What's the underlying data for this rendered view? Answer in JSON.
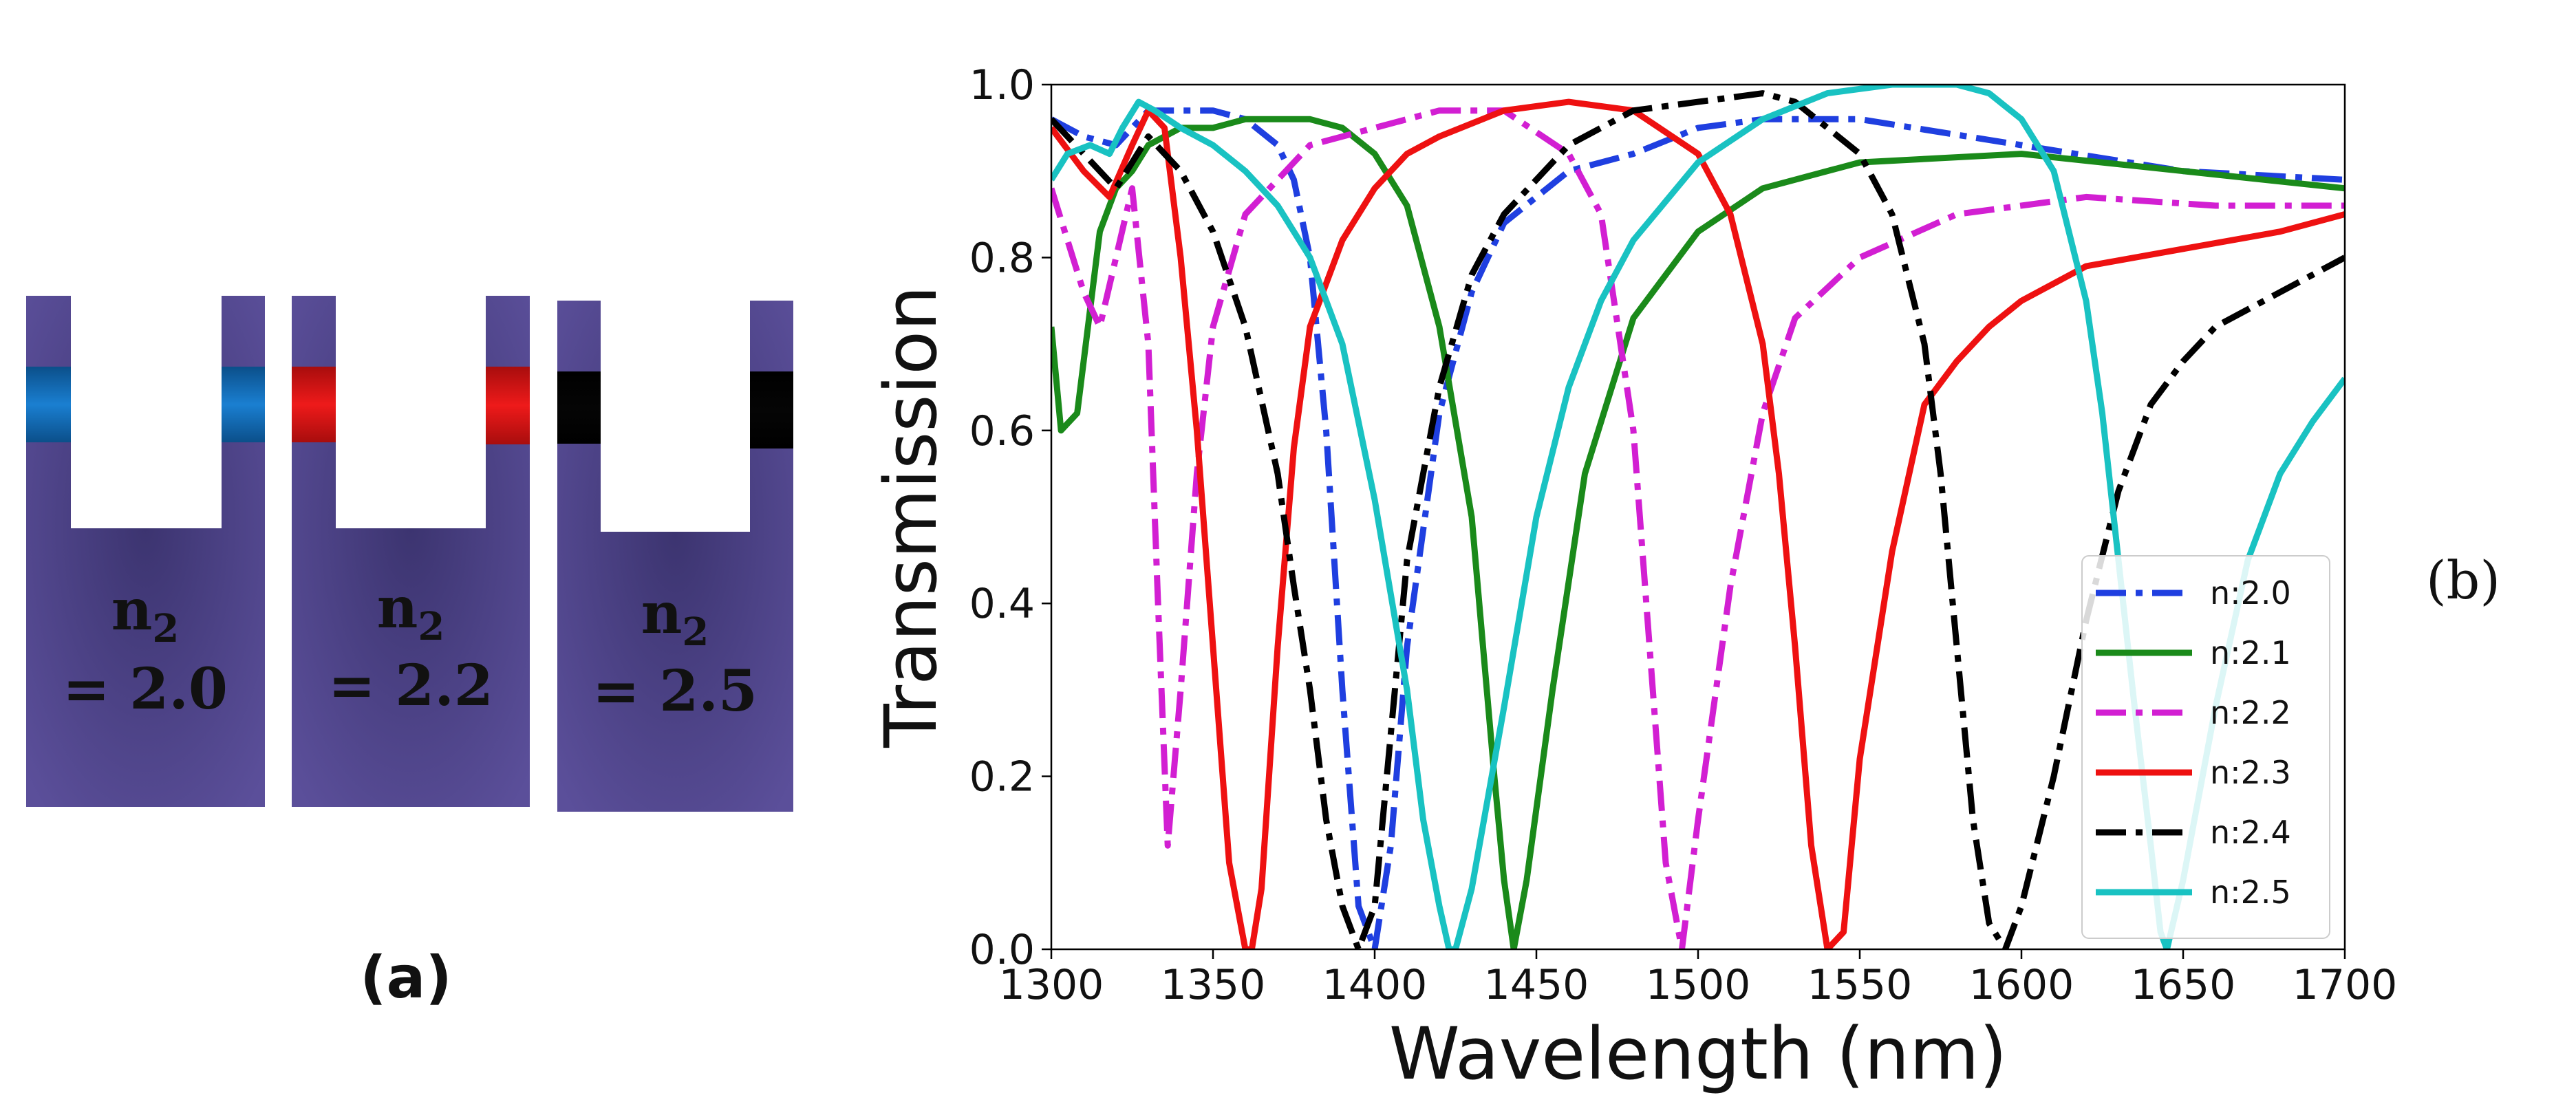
{
  "panel_a": {
    "label": "(a)",
    "devices": [
      {
        "n_symbol": "n",
        "n_subscript": "2",
        "equation": "= 2.0",
        "insert_color": "#1a7fd1",
        "insert_color_dark": "#0b4f8a"
      },
      {
        "n_symbol": "n",
        "n_subscript": "2",
        "equation": "= 2.2",
        "insert_color": "#ee1a1a",
        "insert_color_dark": "#a80d0d"
      },
      {
        "n_symbol": "n",
        "n_subscript": "2",
        "equation": "= 2.5",
        "insert_color": "#050505",
        "insert_color_dark": "#000000"
      }
    ],
    "body_color": "#5b4f9a",
    "body_color_dark": "#3c3470"
  },
  "panel_b": {
    "label": "(b)"
  },
  "chart_data": {
    "type": "line",
    "title": "",
    "xlabel": "Wavelength (nm)",
    "ylabel": "Transmission",
    "xlim": [
      1300,
      1700
    ],
    "ylim": [
      0.0,
      1.0
    ],
    "xticks": [
      1300,
      1350,
      1400,
      1450,
      1500,
      1550,
      1600,
      1650,
      1700
    ],
    "yticks": [
      0.0,
      0.2,
      0.4,
      0.6,
      0.8,
      1.0
    ],
    "xtick_labels": [
      "1300",
      "1350",
      "1400",
      "1450",
      "1500",
      "1550",
      "1600",
      "1650",
      "1700"
    ],
    "ytick_labels": [
      "0.0",
      "0.2",
      "0.4",
      "0.6",
      "0.8",
      "1.0"
    ],
    "legend_position": "lower-right",
    "series": [
      {
        "name": "n:2.0",
        "color": "#1f3fe0",
        "style": "dashdot",
        "x": [
          1300,
          1310,
          1320,
          1330,
          1340,
          1350,
          1360,
          1370,
          1375,
          1380,
          1385,
          1390,
          1395,
          1400,
          1405,
          1410,
          1420,
          1430,
          1440,
          1460,
          1480,
          1500,
          1520,
          1550,
          1600,
          1650,
          1700
        ],
        "y": [
          0.96,
          0.94,
          0.93,
          0.97,
          0.97,
          0.97,
          0.96,
          0.93,
          0.89,
          0.8,
          0.6,
          0.3,
          0.05,
          0.0,
          0.12,
          0.35,
          0.62,
          0.76,
          0.84,
          0.9,
          0.92,
          0.95,
          0.96,
          0.96,
          0.93,
          0.9,
          0.89
        ]
      },
      {
        "name": "n:2.1",
        "color": "#1a8a1a",
        "style": "solid",
        "x": [
          1300,
          1303,
          1308,
          1315,
          1320,
          1325,
          1330,
          1340,
          1350,
          1360,
          1380,
          1390,
          1400,
          1410,
          1420,
          1430,
          1437,
          1440,
          1443,
          1447,
          1455,
          1465,
          1480,
          1500,
          1520,
          1550,
          1600,
          1650,
          1700
        ],
        "y": [
          0.72,
          0.6,
          0.62,
          0.83,
          0.88,
          0.9,
          0.93,
          0.95,
          0.95,
          0.96,
          0.96,
          0.95,
          0.92,
          0.86,
          0.72,
          0.5,
          0.2,
          0.08,
          0.0,
          0.08,
          0.3,
          0.55,
          0.73,
          0.83,
          0.88,
          0.91,
          0.92,
          0.9,
          0.88
        ]
      },
      {
        "name": "n:2.2",
        "color": "#d21fd2",
        "style": "dashdot",
        "x": [
          1300,
          1305,
          1310,
          1315,
          1320,
          1325,
          1330,
          1333,
          1336,
          1340,
          1345,
          1350,
          1360,
          1380,
          1400,
          1420,
          1440,
          1460,
          1470,
          1480,
          1485,
          1490,
          1495,
          1500,
          1510,
          1520,
          1530,
          1550,
          1580,
          1620,
          1660,
          1700
        ],
        "y": [
          0.88,
          0.82,
          0.76,
          0.72,
          0.8,
          0.88,
          0.7,
          0.4,
          0.12,
          0.3,
          0.55,
          0.72,
          0.85,
          0.93,
          0.95,
          0.97,
          0.97,
          0.92,
          0.85,
          0.6,
          0.35,
          0.1,
          0.0,
          0.15,
          0.42,
          0.62,
          0.73,
          0.8,
          0.85,
          0.87,
          0.86,
          0.86
        ]
      },
      {
        "name": "n:2.3",
        "color": "#ee1111",
        "style": "solid",
        "x": [
          1300,
          1310,
          1318,
          1325,
          1330,
          1335,
          1340,
          1345,
          1350,
          1355,
          1360,
          1362,
          1365,
          1370,
          1375,
          1380,
          1390,
          1400,
          1410,
          1420,
          1440,
          1460,
          1480,
          1500,
          1510,
          1520,
          1525,
          1530,
          1535,
          1540,
          1545,
          1550,
          1560,
          1570,
          1580,
          1590,
          1600,
          1620,
          1650,
          1680,
          1700
        ],
        "y": [
          0.95,
          0.9,
          0.87,
          0.93,
          0.97,
          0.95,
          0.8,
          0.6,
          0.35,
          0.1,
          0.0,
          0.0,
          0.07,
          0.35,
          0.58,
          0.72,
          0.82,
          0.88,
          0.92,
          0.94,
          0.97,
          0.98,
          0.97,
          0.92,
          0.85,
          0.7,
          0.55,
          0.35,
          0.12,
          0.0,
          0.02,
          0.22,
          0.46,
          0.63,
          0.68,
          0.72,
          0.75,
          0.79,
          0.81,
          0.83,
          0.85
        ]
      },
      {
        "name": "n:2.4",
        "color": "#000000",
        "style": "dashdot",
        "x": [
          1300,
          1310,
          1320,
          1330,
          1340,
          1350,
          1360,
          1370,
          1375,
          1380,
          1385,
          1390,
          1395,
          1400,
          1405,
          1410,
          1420,
          1430,
          1440,
          1460,
          1480,
          1500,
          1520,
          1530,
          1550,
          1560,
          1570,
          1575,
          1580,
          1585,
          1590,
          1595,
          1600,
          1610,
          1620,
          1630,
          1640,
          1650,
          1660,
          1680,
          1700
        ],
        "y": [
          0.96,
          0.92,
          0.88,
          0.94,
          0.9,
          0.83,
          0.72,
          0.55,
          0.42,
          0.3,
          0.15,
          0.05,
          0.0,
          0.05,
          0.25,
          0.45,
          0.65,
          0.78,
          0.85,
          0.93,
          0.97,
          0.98,
          0.99,
          0.98,
          0.92,
          0.85,
          0.7,
          0.55,
          0.35,
          0.15,
          0.03,
          0.0,
          0.05,
          0.2,
          0.38,
          0.53,
          0.63,
          0.68,
          0.72,
          0.76,
          0.8
        ]
      },
      {
        "name": "n:2.5",
        "color": "#19c2c2",
        "style": "solid",
        "x": [
          1300,
          1305,
          1312,
          1318,
          1322,
          1327,
          1332,
          1340,
          1350,
          1360,
          1370,
          1380,
          1390,
          1400,
          1410,
          1415,
          1420,
          1423,
          1425,
          1430,
          1440,
          1450,
          1460,
          1470,
          1480,
          1500,
          1520,
          1540,
          1560,
          1570,
          1580,
          1590,
          1600,
          1610,
          1620,
          1625,
          1630,
          1635,
          1640,
          1643,
          1645,
          1650,
          1660,
          1670,
          1680,
          1690,
          1700
        ],
        "y": [
          0.89,
          0.92,
          0.93,
          0.92,
          0.95,
          0.98,
          0.97,
          0.95,
          0.93,
          0.9,
          0.86,
          0.8,
          0.7,
          0.52,
          0.3,
          0.15,
          0.05,
          0.0,
          0.0,
          0.07,
          0.28,
          0.5,
          0.65,
          0.75,
          0.82,
          0.91,
          0.96,
          0.99,
          1.0,
          1.0,
          1.0,
          0.99,
          0.96,
          0.9,
          0.75,
          0.62,
          0.45,
          0.28,
          0.12,
          0.02,
          0.0,
          0.08,
          0.28,
          0.45,
          0.55,
          0.61,
          0.66
        ]
      }
    ]
  }
}
